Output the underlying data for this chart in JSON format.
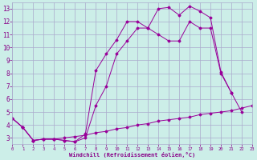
{
  "xlabel": "Windchill (Refroidissement éolien,°C)",
  "background_color": "#cceee8",
  "grid_color": "#aaaacc",
  "line_color": "#990099",
  "xlim": [
    0,
    23
  ],
  "ylim": [
    2.5,
    13.5
  ],
  "xticks": [
    0,
    1,
    2,
    3,
    4,
    5,
    6,
    7,
    8,
    9,
    10,
    11,
    12,
    13,
    14,
    15,
    16,
    17,
    18,
    19,
    20,
    21,
    22,
    23
  ],
  "yticks": [
    3,
    4,
    5,
    6,
    7,
    8,
    9,
    10,
    11,
    12,
    13
  ],
  "curve1_x": [
    0,
    1,
    2,
    3,
    4,
    5,
    6,
    7,
    8,
    9,
    10,
    11,
    12,
    13,
    14,
    15,
    16,
    17,
    18,
    19,
    20,
    21
  ],
  "curve1_y": [
    4.5,
    3.8,
    2.8,
    2.9,
    2.9,
    2.8,
    2.7,
    3.3,
    8.2,
    9.5,
    10.6,
    12.0,
    12.0,
    11.5,
    13.0,
    13.1,
    12.5,
    13.2,
    12.8,
    12.3,
    8.1,
    6.5
  ],
  "curve2_x": [
    0,
    1,
    2,
    3,
    4,
    5,
    6,
    7,
    8,
    9,
    10,
    11,
    12,
    13,
    14,
    15,
    16,
    17,
    18,
    19,
    20,
    21,
    22
  ],
  "curve2_y": [
    4.5,
    3.8,
    2.8,
    2.9,
    2.9,
    2.8,
    2.7,
    3.0,
    5.5,
    7.0,
    9.5,
    10.5,
    11.5,
    11.5,
    11.0,
    10.5,
    10.5,
    12.0,
    11.5,
    11.5,
    8.0,
    6.5,
    5.0
  ],
  "curve3_x": [
    0,
    1,
    2,
    3,
    4,
    5,
    6,
    7,
    8,
    9,
    10,
    11,
    12,
    13,
    14,
    15,
    16,
    17,
    18,
    19,
    20,
    21,
    22,
    23
  ],
  "curve3_y": [
    4.5,
    3.8,
    2.8,
    2.9,
    2.9,
    3.0,
    3.1,
    3.2,
    3.4,
    3.5,
    3.7,
    3.8,
    4.0,
    4.1,
    4.3,
    4.4,
    4.5,
    4.6,
    4.8,
    4.9,
    5.0,
    5.1,
    5.3,
    5.5
  ]
}
